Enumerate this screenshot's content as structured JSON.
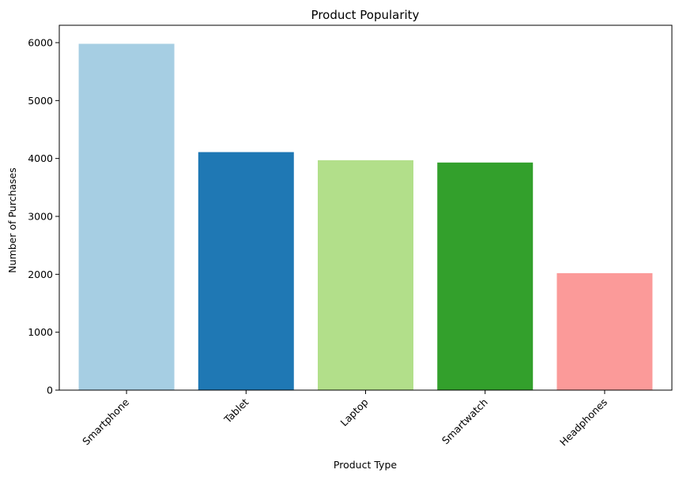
{
  "chart_data": {
    "type": "bar",
    "title": "Product Popularity",
    "xlabel": "Product Type",
    "ylabel": "Number of Purchases",
    "categories": [
      "Smartphone",
      "Tablet",
      "Laptop",
      "Smartwatch",
      "Headphones"
    ],
    "values": [
      5980,
      4110,
      3970,
      3930,
      2020
    ],
    "colors": [
      "#a6cee3",
      "#1f78b4",
      "#b2df8a",
      "#33a02c",
      "#fb9a99"
    ],
    "ylim": [
      0,
      6300
    ],
    "yticks": [
      0,
      1000,
      2000,
      3000,
      4000,
      5000,
      6000
    ],
    "ytick_labels": [
      "0",
      "1000",
      "2000",
      "3000",
      "4000",
      "5000",
      "6000"
    ],
    "grid": false,
    "xtick_rotation": 45
  }
}
